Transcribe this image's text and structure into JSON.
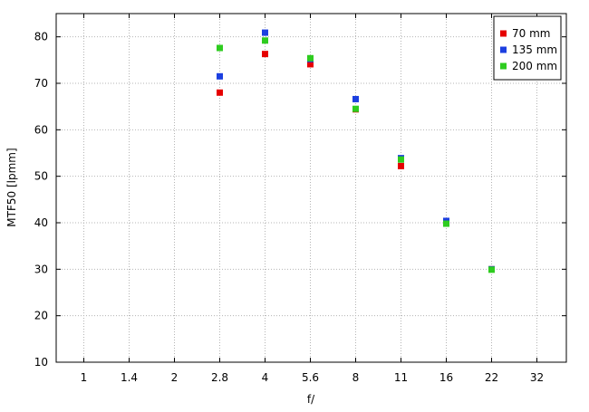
{
  "chart_data": {
    "type": "scatter",
    "title": "",
    "xlabel": "f/",
    "ylabel": "MTF50 [lpmm]",
    "categories": [
      "1",
      "1.4",
      "2",
      "2.8",
      "4",
      "5.6",
      "8",
      "11",
      "16",
      "22",
      "32"
    ],
    "ylim": [
      10,
      85
    ],
    "yticks": [
      10,
      20,
      30,
      40,
      50,
      60,
      70,
      80
    ],
    "grid": true,
    "legend_position": "top-right",
    "series": [
      {
        "name": "70 mm",
        "color": "#e60000",
        "points": [
          {
            "x": "2.8",
            "y": 68.0
          },
          {
            "x": "4",
            "y": 76.3
          },
          {
            "x": "5.6",
            "y": 74.1
          },
          {
            "x": "8",
            "y": 64.4
          },
          {
            "x": "11",
            "y": 52.2
          },
          {
            "x": "16",
            "y": 40.1
          },
          {
            "x": "22",
            "y": 30.0
          }
        ]
      },
      {
        "name": "135 mm",
        "color": "#1c3fe0",
        "points": [
          {
            "x": "2.8",
            "y": 71.5
          },
          {
            "x": "4",
            "y": 80.9
          },
          {
            "x": "5.6",
            "y": 75.2
          },
          {
            "x": "8",
            "y": 66.6
          },
          {
            "x": "11",
            "y": 53.9
          },
          {
            "x": "16",
            "y": 40.4
          },
          {
            "x": "22",
            "y": 30.0
          }
        ]
      },
      {
        "name": "200 mm",
        "color": "#2ecc1f",
        "points": [
          {
            "x": "2.8",
            "y": 77.6
          },
          {
            "x": "4",
            "y": 79.2
          },
          {
            "x": "5.6",
            "y": 75.4
          },
          {
            "x": "8",
            "y": 64.5
          },
          {
            "x": "11",
            "y": 53.6
          },
          {
            "x": "16",
            "y": 39.8
          },
          {
            "x": "22",
            "y": 29.9
          }
        ]
      }
    ]
  }
}
